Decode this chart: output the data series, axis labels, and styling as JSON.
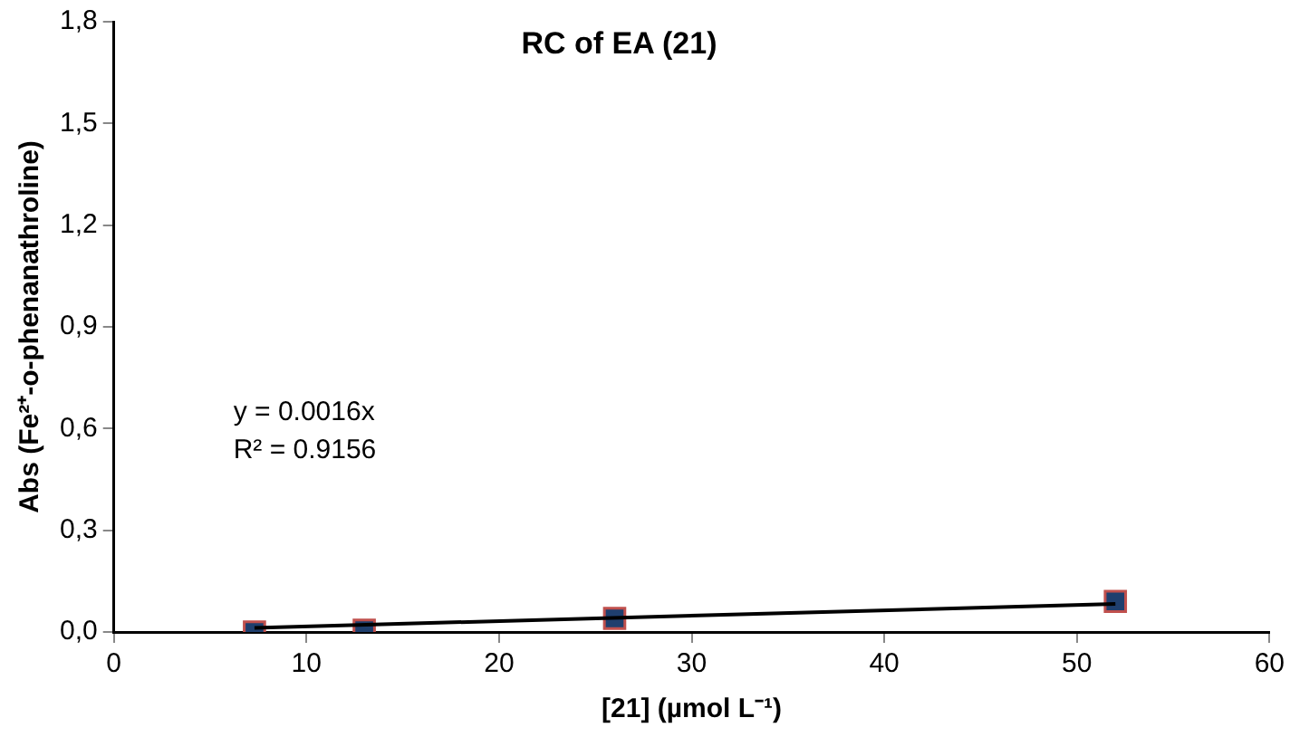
{
  "chart_data": {
    "type": "scatter",
    "title": "RC of EA (21)",
    "xlabel": "[21] (µmol L⁻¹)",
    "ylabel": "Abs (Fe²⁺-o-phenanathroline)",
    "x": [
      7.3,
      13,
      26,
      52
    ],
    "series": [
      {
        "type": "scatter",
        "color": "#1f3f6e",
        "marker": "square",
        "values": [
          0.0,
          0.005,
          0.04,
          0.09
        ]
      },
      {
        "type": "line",
        "color": "#000000",
        "marker": "none",
        "x": [
          7.3,
          52
        ],
        "values": [
          0.012,
          0.083
        ]
      }
    ],
    "xlim": [
      0,
      60
    ],
    "xticks": [
      0,
      10,
      20,
      30,
      40,
      50,
      60
    ],
    "ylim": [
      0,
      1.8
    ],
    "yticks": [
      {
        "value": 0,
        "label": "0,0"
      },
      {
        "value": 0.3,
        "label": "0,3"
      },
      {
        "value": 0.6,
        "label": "0,6"
      },
      {
        "value": 0.9,
        "label": "0,9"
      },
      {
        "value": 1.2,
        "label": "1,2"
      },
      {
        "value": 1.5,
        "label": "1,5"
      },
      {
        "value": 1.8,
        "label": "1,8"
      }
    ],
    "annotations": [
      "y = 0.0016x",
      "R² = 0.9156"
    ],
    "grid": false,
    "legend": false
  }
}
